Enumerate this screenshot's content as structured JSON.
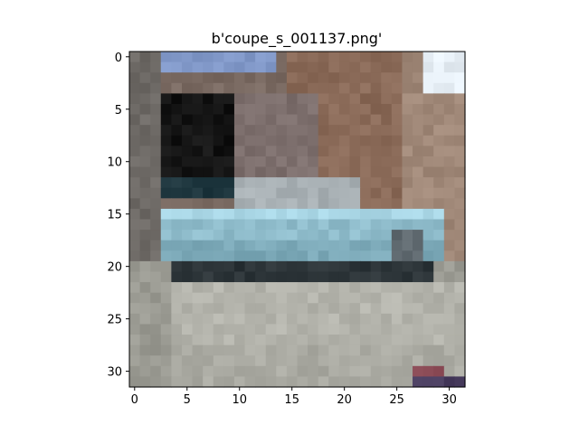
{
  "figure": {
    "title": "b'coupe_s_001137.png'"
  },
  "image": {
    "description_grid_cols": 32,
    "description_grid_rows": 32,
    "palette": {
      "sky": "#e6eef5",
      "wall_brown": "#8a6a58",
      "wall_light": "#a08878",
      "doorway": "#141414",
      "car_body": "#8fbccb",
      "car_shadow": "#2c3438",
      "road": "#b4b4ac",
      "road_dark": "#9a9a92",
      "awning_blue": "#7f96c6",
      "bottom_red": "#8a4a55",
      "bottom_purple": "#4a3e60"
    }
  },
  "axes": {
    "x_ticks": [
      "0",
      "5",
      "10",
      "15",
      "20",
      "25",
      "30"
    ],
    "y_ticks": [
      "0",
      "5",
      "10",
      "15",
      "20",
      "25",
      "30"
    ]
  }
}
